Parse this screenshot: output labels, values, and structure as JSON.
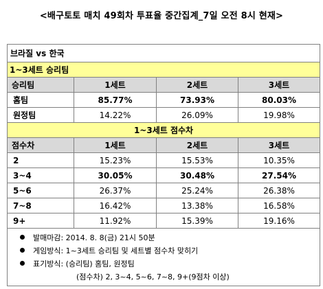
{
  "title": "<배구토토 매치 49회차 투표율 중간집계_7일 오전 8시 현재>",
  "match": "브라질 vs 한국",
  "section1": {
    "banner": "1~3세트 승리팀",
    "headers": [
      "승리팀",
      "1세트",
      "2세트",
      "3세트"
    ],
    "rows": [
      {
        "label": "홈팀",
        "values": [
          "85.77%",
          "73.93%",
          "80.03%"
        ],
        "bold": [
          true,
          true,
          true
        ]
      },
      {
        "label": "원정팀",
        "values": [
          "14.22%",
          "26.09%",
          "19.98%"
        ],
        "bold": [
          false,
          false,
          false
        ]
      }
    ]
  },
  "section2": {
    "banner": "1~3세트 점수차",
    "headers": [
      "점수차",
      "1세트",
      "2세트",
      "3세트"
    ],
    "rows": [
      {
        "label": "2",
        "values": [
          "15.23%",
          "15.53%",
          "10.35%"
        ],
        "bold": [
          false,
          false,
          false
        ]
      },
      {
        "label": "3~4",
        "values": [
          "30.05%",
          "30.48%",
          "27.54%"
        ],
        "bold": [
          true,
          true,
          true
        ]
      },
      {
        "label": "5~6",
        "values": [
          "26.37%",
          "25.24%",
          "26.38%"
        ],
        "bold": [
          false,
          false,
          false
        ]
      },
      {
        "label": "7~8",
        "values": [
          "16.42%",
          "13.38%",
          "16.58%"
        ],
        "bold": [
          false,
          false,
          false
        ]
      },
      {
        "label": "9+",
        "values": [
          "11.92%",
          "15.39%",
          "19.16%"
        ],
        "bold": [
          false,
          false,
          false
        ]
      }
    ]
  },
  "notes": [
    "발매마감: 2014. 8. 8(금) 21시 50분",
    "게임방식: 1~3세트 승리팀 및 세트별 점수차 맞히기",
    "표기방식: (승리팀) 홈팀, 원정팀"
  ],
  "note_continuation": "(점수차) 2, 3~4, 5~6, 7~8, 9+(9점차 이상)"
}
